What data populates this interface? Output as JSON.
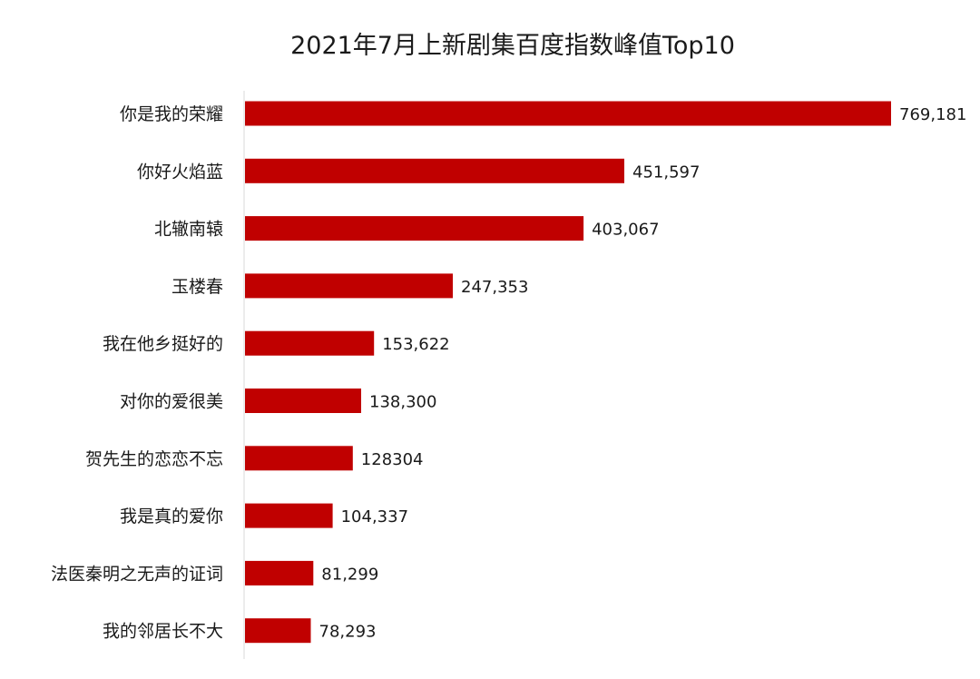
{
  "chart_data": {
    "type": "bar",
    "orientation": "horizontal",
    "title": "2021年7月上新剧集百度指数峰值Top10",
    "xlabel": "",
    "ylabel": "",
    "categories": [
      "你是我的荣耀",
      "你好火焰蓝",
      "北辙南辕",
      "玉楼春",
      "我在他乡挺好的",
      "对你的爱很美",
      "贺先生的恋恋不忘",
      "我是真的爱你",
      "法医秦明之无声的证词",
      "我的邻居长不大"
    ],
    "values": [
      769181,
      451597,
      403067,
      247353,
      153622,
      138300,
      128304,
      104337,
      81299,
      78293
    ],
    "value_labels": [
      "769,181",
      "451,597",
      "403,067",
      "247,353",
      "153,622",
      "138,300",
      "128304",
      "104,337",
      "81,299",
      "78,293"
    ],
    "xlim": [
      0,
      794000
    ],
    "bar_color": "#c00000",
    "axis_color": "#d9d9d9",
    "grid": false,
    "legend": "none"
  }
}
